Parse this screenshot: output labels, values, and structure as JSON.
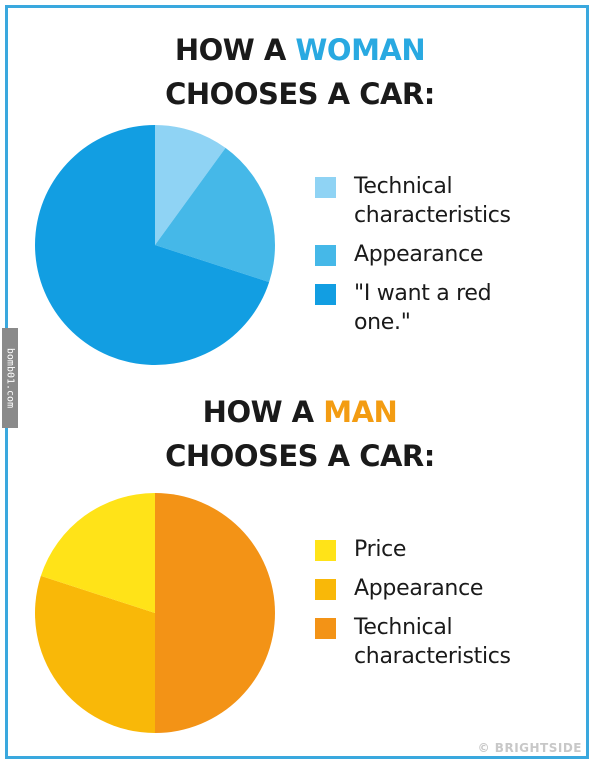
{
  "colors": {
    "border": "#3aa8de",
    "woman_accent": "#29a9e1",
    "man_accent": "#f39c12"
  },
  "side_watermark": "bomb01.com",
  "credit": "© BRIGHTSIDE",
  "chart_data": [
    {
      "type": "pie",
      "title_line1_prefix": "HOW A ",
      "title_line1_highlight": "WOMAN",
      "title_line2": "CHOOSES A CAR:",
      "start_angle_deg": 0,
      "direction": "clockwise",
      "series": [
        {
          "name": "Technical characteristics",
          "value": 10,
          "color": "#8fd3f4"
        },
        {
          "name": "Appearance",
          "value": 20,
          "color": "#45b8e8"
        },
        {
          "name": "\"I want a red one.\"",
          "value": 70,
          "color": "#129ee2"
        }
      ],
      "legend_order": [
        0,
        1,
        2
      ],
      "legend_placement": "right"
    },
    {
      "type": "pie",
      "title_line1_prefix": "HOW A ",
      "title_line1_highlight": "MAN",
      "title_line2": "CHOOSES A CAR:",
      "start_angle_deg": 0,
      "direction": "clockwise",
      "series": [
        {
          "name": "Technical characteristics",
          "value": 50,
          "color": "#f39316"
        },
        {
          "name": "Appearance",
          "value": 30,
          "color": "#f9b808"
        },
        {
          "name": "Price",
          "value": 20,
          "color": "#ffe318"
        }
      ],
      "legend_order": [
        2,
        1,
        0
      ],
      "legend_placement": "right"
    }
  ]
}
